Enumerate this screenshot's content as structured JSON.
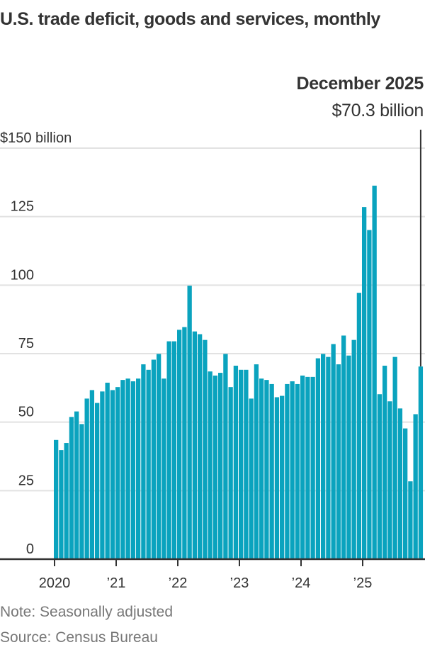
{
  "title": "U.S. trade deficit, goods and services, monthly",
  "annotation": {
    "label": "December 2025",
    "value": "$70.3 billion"
  },
  "footer": {
    "note": "Note: Seasonally adjusted",
    "source": "Source: Census Bureau"
  },
  "colors": {
    "bar": "#0aa3be",
    "grid": "#e2e2e2",
    "axis": "#333333",
    "text": "#333333",
    "muted": "#777777"
  },
  "chart_data": {
    "type": "bar",
    "title": "U.S. trade deficit, goods and services, monthly",
    "xlabel": "",
    "ylabel": "$ billion",
    "ylim": [
      0,
      150
    ],
    "yticks": [
      0,
      25,
      50,
      75,
      100,
      125,
      150
    ],
    "ytick_labels": [
      "0",
      "25",
      "50",
      "75",
      "100",
      "125",
      "$150 billion"
    ],
    "xtick_labels": [
      "2020",
      "’21",
      "’22",
      "’23",
      "’24",
      "’25"
    ],
    "xtick_index": [
      0,
      12,
      24,
      36,
      48,
      60
    ],
    "grid": true,
    "start": "2020-01",
    "categories": [
      "2020-01",
      "2020-02",
      "2020-03",
      "2020-04",
      "2020-05",
      "2020-06",
      "2020-07",
      "2020-08",
      "2020-09",
      "2020-10",
      "2020-11",
      "2020-12",
      "2021-01",
      "2021-02",
      "2021-03",
      "2021-04",
      "2021-05",
      "2021-06",
      "2021-07",
      "2021-08",
      "2021-09",
      "2021-10",
      "2021-11",
      "2021-12",
      "2022-01",
      "2022-02",
      "2022-03",
      "2022-04",
      "2022-05",
      "2022-06",
      "2022-07",
      "2022-08",
      "2022-09",
      "2022-10",
      "2022-11",
      "2022-12",
      "2023-01",
      "2023-02",
      "2023-03",
      "2023-04",
      "2023-05",
      "2023-06",
      "2023-07",
      "2023-08",
      "2023-09",
      "2023-10",
      "2023-11",
      "2023-12",
      "2024-01",
      "2024-02",
      "2024-03",
      "2024-04",
      "2024-05",
      "2024-06",
      "2024-07",
      "2024-08",
      "2024-09",
      "2024-10",
      "2024-11",
      "2024-12",
      "2025-01",
      "2025-02",
      "2025-03",
      "2025-04",
      "2025-05",
      "2025-06",
      "2025-07",
      "2025-08",
      "2025-09",
      "2025-10",
      "2025-11",
      "2025-12"
    ],
    "values": [
      43.5,
      39.8,
      42.4,
      51.9,
      53.9,
      49.3,
      58.6,
      61.7,
      57.0,
      61.2,
      64.4,
      61.7,
      62.8,
      65.4,
      65.9,
      64.9,
      65.9,
      71.1,
      69.1,
      72.8,
      74.9,
      65.9,
      79.5,
      79.5,
      83.7,
      84.7,
      99.8,
      83.1,
      82.1,
      80.0,
      68.5,
      67.0,
      68.0,
      74.9,
      62.8,
      70.6,
      69.1,
      69.1,
      58.6,
      71.1,
      65.9,
      65.4,
      63.9,
      59.1,
      59.6,
      63.9,
      64.9,
      63.9,
      67.0,
      66.5,
      66.5,
      73.3,
      74.9,
      73.8,
      78.5,
      71.1,
      81.6,
      74.3,
      80.0,
      97.2,
      128.5,
      120.1,
      136.3,
      60.2,
      70.6,
      57.6,
      73.8,
      55.0,
      47.7,
      28.4,
      52.9,
      70.3
    ],
    "highlight": {
      "category": "2025-12",
      "value": 70.3
    }
  }
}
